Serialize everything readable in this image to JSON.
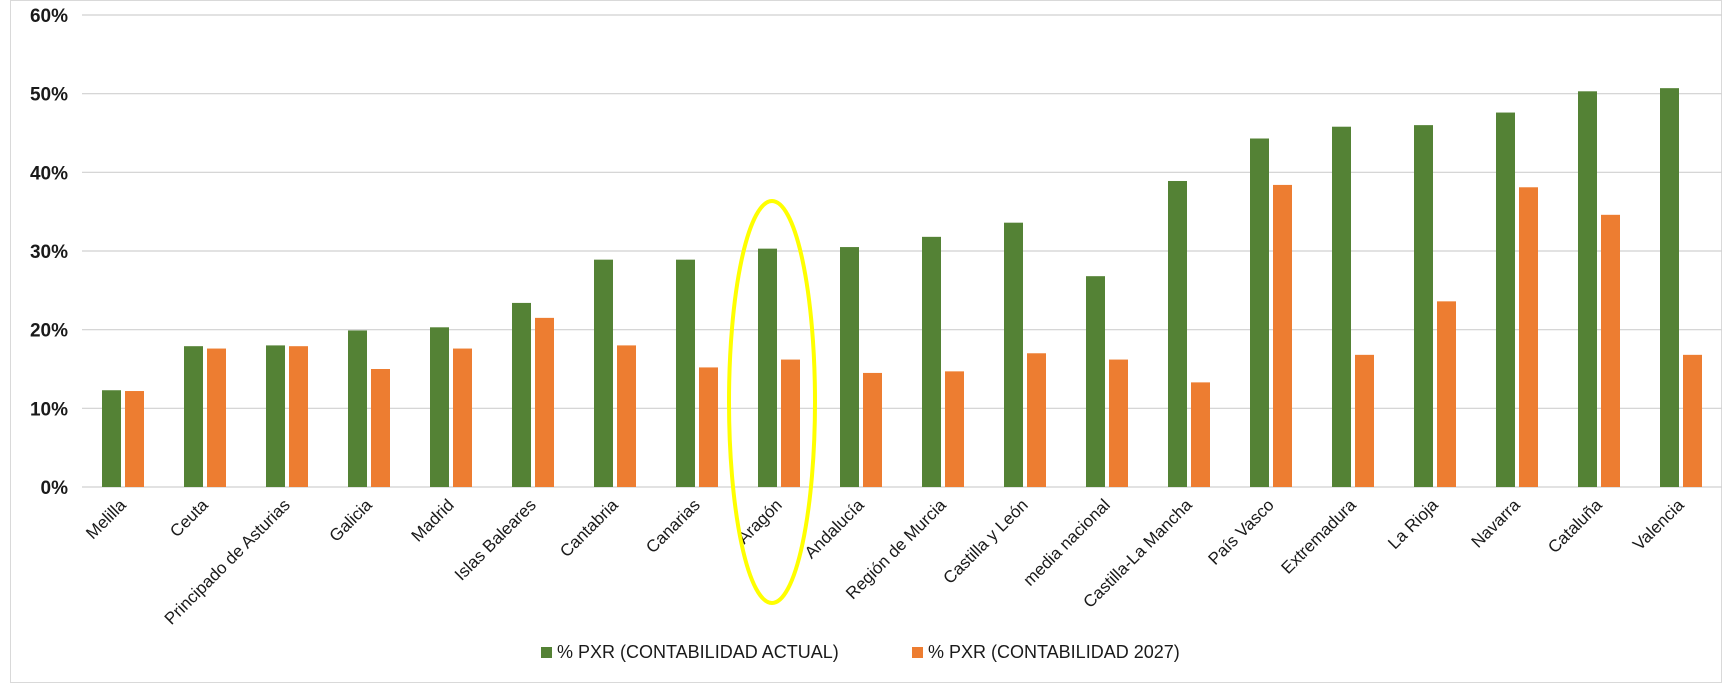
{
  "colors": {
    "series_actual": "#548235",
    "series_2027": "#ed7d31",
    "highlight": "#ffff00",
    "grid": "#d0d0d0"
  },
  "chart_data": {
    "type": "bar",
    "title": "",
    "xlabel": "",
    "ylabel": "",
    "ylim": [
      0,
      60
    ],
    "yticks": [
      "0%",
      "10%",
      "20%",
      "30%",
      "40%",
      "50%",
      "60%"
    ],
    "grid": true,
    "legend_position": "bottom",
    "highlighted_category": "Aragón",
    "categories": [
      "Melilla",
      "Ceuta",
      "Principado de Asturias",
      "Galicia",
      "Madrid",
      "Islas Baleares",
      "Cantabria",
      "Canarias",
      "Aragón",
      "Andalucía",
      "Región de Murcia",
      "Castilla y León",
      "media nacional",
      "Castilla-La Mancha",
      "País Vasco",
      "Extremadura",
      "La Rioja",
      "Navarra",
      "Cataluña",
      "Valencia"
    ],
    "series": [
      {
        "name": "% PXR (CONTABILIDAD ACTUAL)",
        "values": [
          12.3,
          17.9,
          18.0,
          19.9,
          20.3,
          23.4,
          28.9,
          28.9,
          30.3,
          30.5,
          31.8,
          33.6,
          26.8,
          38.9,
          44.3,
          45.8,
          46.0,
          47.6,
          50.3,
          50.7
        ]
      },
      {
        "name": "% PXR (CONTABILIDAD 2027)",
        "values": [
          12.2,
          17.6,
          17.9,
          15.0,
          17.6,
          21.5,
          18.0,
          15.2,
          16.2,
          14.5,
          14.7,
          17.0,
          16.2,
          13.3,
          38.4,
          16.8,
          23.6,
          38.1,
          34.6,
          16.8
        ]
      }
    ]
  }
}
